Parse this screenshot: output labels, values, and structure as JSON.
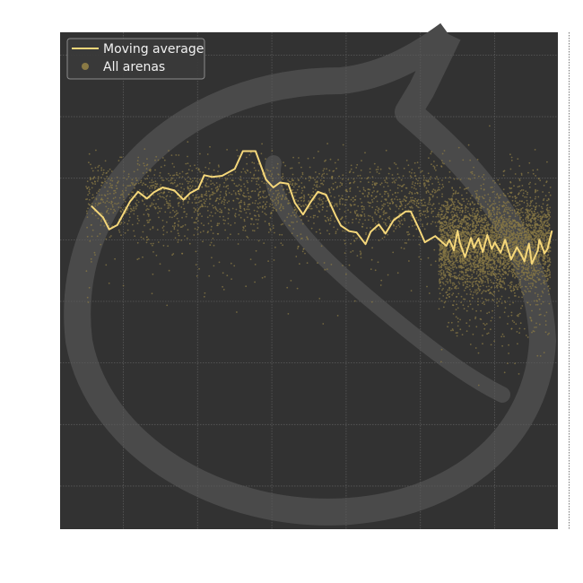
{
  "chart_data": {
    "type": "scatter",
    "title": "",
    "xlabel": "",
    "ylabel": "",
    "grid": true,
    "axes_labels_visible": false,
    "legend_placement": "top-left",
    "x_grid": [
      0.5,
      1.5,
      2.5,
      3.5,
      4.5,
      5.5,
      6.5
    ],
    "y_grid": [
      0.5,
      1.5,
      2.5,
      3.5,
      4.5,
      5.5,
      6.5,
      7.5
    ],
    "xlim": [
      -0.35,
      6.35
    ],
    "ylim": [
      7.87,
      -0.2
    ],
    "colors": {
      "plot_bg": "#323232",
      "grid": "#5a5a5a",
      "scatter": "#8a7a45",
      "line": "#f5d77a",
      "watermark": "#4a4a4a",
      "legend_bg": "#3a3a3a",
      "legend_border": "#8a8a8a"
    },
    "series": [
      {
        "name": "Moving average",
        "kind": "line",
        "x": [
          0.07,
          0.23,
          0.31,
          0.42,
          0.59,
          0.7,
          0.82,
          0.91,
          1.03,
          1.19,
          1.31,
          1.4,
          1.51,
          1.59,
          1.7,
          1.83,
          2.0,
          2.11,
          2.28,
          2.42,
          2.52,
          2.61,
          2.72,
          2.81,
          2.92,
          3.02,
          3.12,
          3.23,
          3.36,
          3.43,
          3.54,
          3.64,
          3.76,
          3.83,
          3.94,
          4.03,
          4.14,
          4.3,
          4.37,
          4.48,
          4.56,
          4.7,
          4.85,
          4.89,
          4.95,
          5.0,
          5.03,
          5.1,
          5.18,
          5.22,
          5.28,
          5.34,
          5.4,
          5.46,
          5.5,
          5.58,
          5.64,
          5.72,
          5.8,
          5.86,
          5.9,
          5.96,
          6.0,
          6.08,
          6.1,
          6.17,
          6.21,
          6.27
        ],
        "y": [
          5.05,
          4.86,
          4.67,
          4.74,
          5.12,
          5.28,
          5.17,
          5.27,
          5.35,
          5.3,
          5.15,
          5.26,
          5.33,
          5.55,
          5.52,
          5.54,
          5.65,
          5.94,
          5.94,
          5.48,
          5.35,
          5.43,
          5.41,
          5.1,
          4.91,
          5.11,
          5.28,
          5.23,
          4.89,
          4.73,
          4.64,
          4.62,
          4.43,
          4.63,
          4.75,
          4.6,
          4.82,
          4.96,
          4.96,
          4.68,
          4.46,
          4.56,
          4.4,
          4.5,
          4.33,
          4.65,
          4.45,
          4.22,
          4.53,
          4.37,
          4.52,
          4.3,
          4.58,
          4.35,
          4.46,
          4.29,
          4.5,
          4.18,
          4.38,
          4.25,
          4.15,
          4.44,
          4.11,
          4.33,
          4.5,
          4.28,
          4.35,
          4.65
        ]
      },
      {
        "name": "All arenas",
        "kind": "scatter",
        "regions": [
          {
            "x": [
              0.0,
              4.75
            ],
            "y_center": 5.2,
            "y_spread": 1.05,
            "count": 1700
          },
          {
            "x": [
              0.0,
              4.75
            ],
            "y_center": 4.6,
            "y_spread": 2.0,
            "count": 300
          },
          {
            "x": [
              4.75,
              6.25
            ],
            "y_center": 4.45,
            "y_spread": 1.25,
            "count": 3200
          },
          {
            "x": [
              4.75,
              6.25
            ],
            "y_center": 4.3,
            "y_spread": 2.6,
            "count": 900
          }
        ]
      }
    ]
  }
}
